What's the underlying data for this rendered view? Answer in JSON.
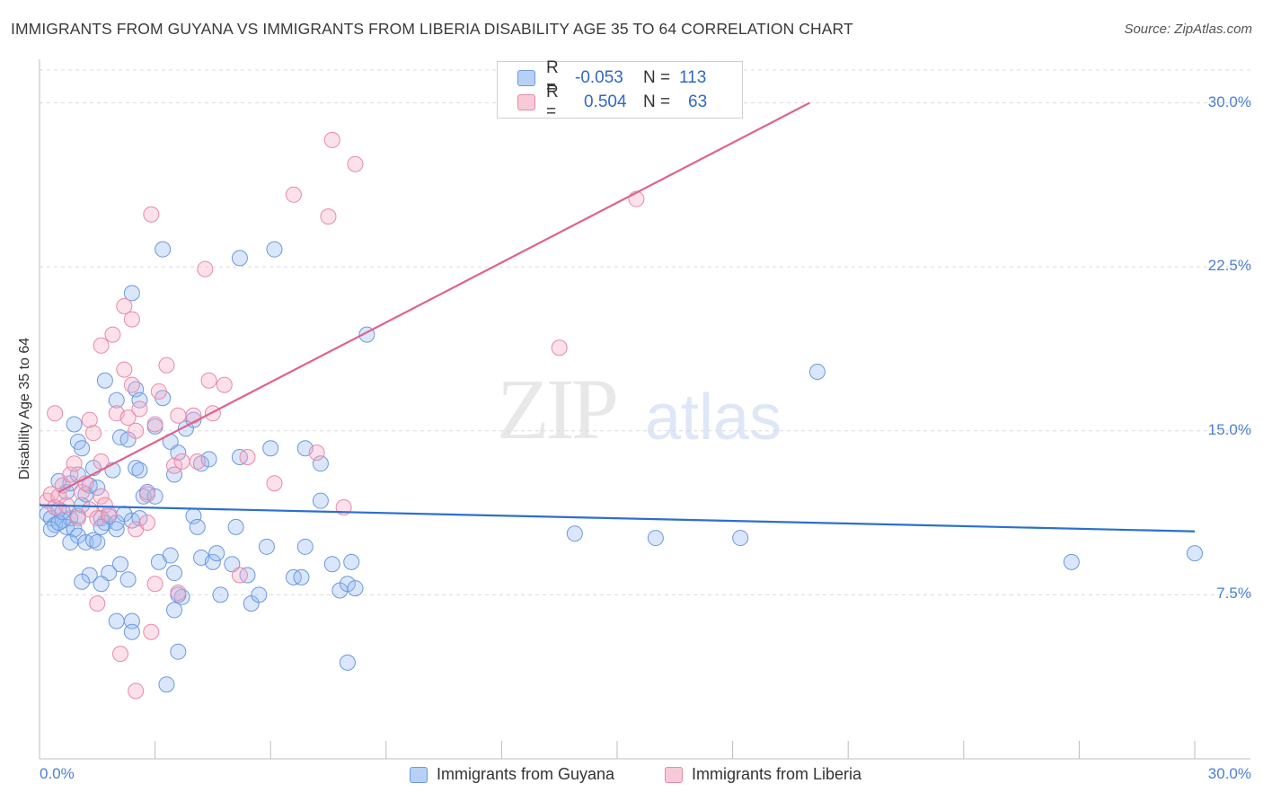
{
  "title": "IMMIGRANTS FROM GUYANA VS IMMIGRANTS FROM LIBERIA DISABILITY AGE 35 TO 64 CORRELATION CHART",
  "source": "Source: ZipAtlas.com",
  "watermark": {
    "zip": "ZIP",
    "atlas": "atlas"
  },
  "colors": {
    "blue": "#5b8fdd",
    "blue_line": "#2c6fcf",
    "pink": "#e88aa8",
    "pink_line": "#e0628f",
    "tick_text": "#4a7fd4"
  },
  "legend": {
    "r_label": "R =",
    "n_label": "N =",
    "rows": [
      {
        "r": "-0.053",
        "n": "113"
      },
      {
        "r": "0.504",
        "n": "63"
      }
    ]
  },
  "chart_data": {
    "type": "scatter",
    "title": "IMMIGRANTS FROM GUYANA VS IMMIGRANTS FROM LIBERIA DISABILITY AGE 35 TO 64 CORRELATION CHART",
    "xlabel": "",
    "ylabel": "Disability Age 35 to 64",
    "xlim": [
      0,
      30
    ],
    "ylim": [
      0,
      31.5
    ],
    "x_tick_labels": [
      "0.0%",
      "30.0%"
    ],
    "y_ticks": [
      7.5,
      15.0,
      22.5,
      30.0
    ],
    "y_tick_labels": [
      "7.5%",
      "15.0%",
      "22.5%",
      "30.0%"
    ],
    "grid": true,
    "legend_position": "bottom",
    "series": [
      {
        "name": "Immigrants from Guyana",
        "color": "#5b8fdd",
        "trend": {
          "x": [
            0,
            30
          ],
          "y": [
            11.6,
            10.4
          ]
        },
        "points": [
          [
            0.2,
            11.2
          ],
          [
            0.3,
            11.0
          ],
          [
            0.4,
            10.7
          ],
          [
            0.5,
            11.4
          ],
          [
            0.6,
            10.9
          ],
          [
            0.7,
            10.6
          ],
          [
            0.8,
            11.0
          ],
          [
            0.9,
            10.5
          ],
          [
            1.0,
            11.1
          ],
          [
            0.3,
            10.5
          ],
          [
            0.5,
            10.8
          ],
          [
            0.6,
            11.3
          ],
          [
            0.7,
            12.2
          ],
          [
            0.8,
            12.6
          ],
          [
            1.0,
            13.0
          ],
          [
            1.1,
            11.6
          ],
          [
            1.2,
            12.1
          ],
          [
            1.3,
            12.5
          ],
          [
            1.4,
            13.3
          ],
          [
            1.5,
            12.4
          ],
          [
            1.6,
            11.0
          ],
          [
            1.7,
            10.8
          ],
          [
            1.8,
            11.1
          ],
          [
            1.0,
            10.2
          ],
          [
            1.2,
            9.9
          ],
          [
            0.8,
            9.9
          ],
          [
            1.4,
            10.0
          ],
          [
            1.5,
            9.9
          ],
          [
            1.6,
            10.6
          ],
          [
            2.0,
            10.8
          ],
          [
            2.2,
            11.2
          ],
          [
            2.4,
            10.9
          ],
          [
            2.6,
            11.0
          ],
          [
            0.9,
            15.3
          ],
          [
            1.0,
            14.5
          ],
          [
            1.1,
            14.2
          ],
          [
            1.7,
            17.3
          ],
          [
            2.0,
            16.4
          ],
          [
            2.1,
            14.7
          ],
          [
            2.3,
            14.6
          ],
          [
            2.5,
            13.3
          ],
          [
            2.6,
            13.2
          ],
          [
            1.9,
            13.2
          ],
          [
            2.7,
            12.0
          ],
          [
            2.8,
            12.2
          ],
          [
            3.0,
            12.0
          ],
          [
            2.5,
            16.9
          ],
          [
            2.6,
            16.4
          ],
          [
            3.0,
            15.2
          ],
          [
            3.2,
            16.5
          ],
          [
            3.4,
            14.5
          ],
          [
            3.5,
            13.0
          ],
          [
            3.6,
            14.0
          ],
          [
            3.8,
            15.1
          ],
          [
            4.0,
            15.5
          ],
          [
            4.2,
            13.5
          ],
          [
            4.4,
            13.7
          ],
          [
            2.4,
            21.3
          ],
          [
            3.2,
            23.3
          ],
          [
            5.2,
            22.9
          ],
          [
            6.1,
            23.3
          ],
          [
            8.5,
            19.4
          ],
          [
            2.0,
            10.5
          ],
          [
            2.1,
            8.9
          ],
          [
            2.3,
            8.2
          ],
          [
            1.8,
            8.5
          ],
          [
            1.6,
            8.0
          ],
          [
            1.3,
            8.4
          ],
          [
            1.1,
            8.1
          ],
          [
            2.0,
            6.3
          ],
          [
            2.4,
            6.3
          ],
          [
            2.4,
            5.8
          ],
          [
            3.1,
            9.0
          ],
          [
            3.4,
            9.3
          ],
          [
            3.5,
            8.5
          ],
          [
            3.7,
            7.4
          ],
          [
            3.6,
            7.5
          ],
          [
            3.5,
            6.8
          ],
          [
            3.6,
            4.9
          ],
          [
            3.3,
            3.4
          ],
          [
            4.0,
            11.1
          ],
          [
            4.1,
            10.6
          ],
          [
            4.2,
            9.2
          ],
          [
            4.5,
            9.0
          ],
          [
            4.7,
            7.5
          ],
          [
            4.6,
            9.4
          ],
          [
            5.0,
            8.9
          ],
          [
            5.1,
            10.6
          ],
          [
            5.2,
            13.8
          ],
          [
            5.4,
            8.4
          ],
          [
            5.5,
            7.1
          ],
          [
            5.7,
            7.5
          ],
          [
            5.9,
            9.7
          ],
          [
            6.0,
            14.2
          ],
          [
            6.6,
            8.3
          ],
          [
            6.8,
            8.3
          ],
          [
            6.9,
            9.7
          ],
          [
            6.9,
            14.2
          ],
          [
            7.3,
            13.5
          ],
          [
            7.3,
            11.8
          ],
          [
            7.6,
            8.9
          ],
          [
            7.8,
            7.7
          ],
          [
            8.0,
            8.0
          ],
          [
            8.1,
            9.0
          ],
          [
            8.2,
            7.8
          ],
          [
            8.0,
            4.4
          ],
          [
            13.9,
            10.3
          ],
          [
            16.0,
            10.1
          ],
          [
            18.2,
            10.1
          ],
          [
            20.2,
            17.7
          ],
          [
            26.8,
            9.0
          ],
          [
            30.0,
            9.4
          ],
          [
            0.5,
            12.7
          ]
        ]
      },
      {
        "name": "Immigrants from Liberia",
        "color": "#e88aa8",
        "trend": {
          "x": [
            0.5,
            20.0
          ],
          "y": [
            12.2,
            30.0
          ]
        },
        "points": [
          [
            0.2,
            11.8
          ],
          [
            0.3,
            12.1
          ],
          [
            0.4,
            11.5
          ],
          [
            0.5,
            12.0
          ],
          [
            0.6,
            12.5
          ],
          [
            0.7,
            11.6
          ],
          [
            0.8,
            13.0
          ],
          [
            0.9,
            13.5
          ],
          [
            1.0,
            11.0
          ],
          [
            1.1,
            12.2
          ],
          [
            1.2,
            12.6
          ],
          [
            1.3,
            11.4
          ],
          [
            1.5,
            11.0
          ],
          [
            1.6,
            12.0
          ],
          [
            1.7,
            11.6
          ],
          [
            1.8,
            11.2
          ],
          [
            0.4,
            15.8
          ],
          [
            1.3,
            15.5
          ],
          [
            1.4,
            14.9
          ],
          [
            1.6,
            13.6
          ],
          [
            2.0,
            15.8
          ],
          [
            2.2,
            17.8
          ],
          [
            2.3,
            15.6
          ],
          [
            2.4,
            17.1
          ],
          [
            2.5,
            15.0
          ],
          [
            2.6,
            16.0
          ],
          [
            2.8,
            12.1
          ],
          [
            3.0,
            15.3
          ],
          [
            3.1,
            16.8
          ],
          [
            3.3,
            18.0
          ],
          [
            3.5,
            13.4
          ],
          [
            3.6,
            15.7
          ],
          [
            3.7,
            13.6
          ],
          [
            4.0,
            15.7
          ],
          [
            4.1,
            13.6
          ],
          [
            4.4,
            17.3
          ],
          [
            4.5,
            15.8
          ],
          [
            4.8,
            17.1
          ],
          [
            5.4,
            13.8
          ],
          [
            6.1,
            12.6
          ],
          [
            1.6,
            18.9
          ],
          [
            1.9,
            19.4
          ],
          [
            2.2,
            20.7
          ],
          [
            2.4,
            20.1
          ],
          [
            2.9,
            24.9
          ],
          [
            4.3,
            22.4
          ],
          [
            6.6,
            25.8
          ],
          [
            7.5,
            24.8
          ],
          [
            7.6,
            28.3
          ],
          [
            8.2,
            27.2
          ],
          [
            15.5,
            25.6
          ],
          [
            13.5,
            18.8
          ],
          [
            7.2,
            14.0
          ],
          [
            7.9,
            11.5
          ],
          [
            2.5,
            10.5
          ],
          [
            2.8,
            10.8
          ],
          [
            1.5,
            7.1
          ],
          [
            2.1,
            4.8
          ],
          [
            2.5,
            3.1
          ],
          [
            2.9,
            5.8
          ],
          [
            3.0,
            8.0
          ],
          [
            3.6,
            7.6
          ],
          [
            5.2,
            8.4
          ]
        ]
      }
    ]
  }
}
